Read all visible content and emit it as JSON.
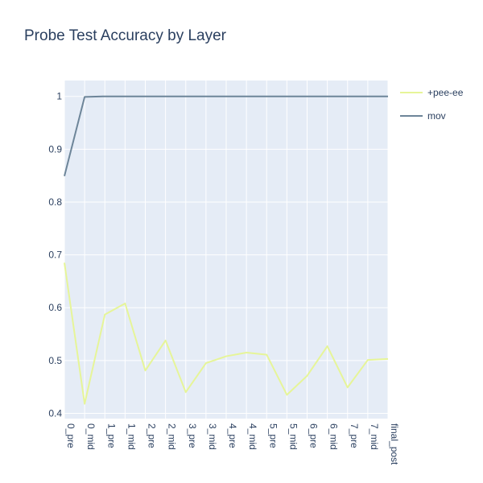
{
  "chart_data": {
    "type": "line",
    "title": "Probe Test Accuracy by Layer",
    "xlabel": "",
    "ylabel": "",
    "categories": [
      "0_pre",
      "0_mid",
      "1_pre",
      "1_mid",
      "2_pre",
      "2_mid",
      "3_pre",
      "3_mid",
      "4_pre",
      "4_mid",
      "5_pre",
      "5_mid",
      "6_pre",
      "6_mid",
      "7_pre",
      "7_mid",
      "final_post"
    ],
    "series": [
      {
        "name": "+pee-ee",
        "color": "#e6f598",
        "values": [
          0.685,
          0.418,
          0.587,
          0.608,
          0.481,
          0.538,
          0.44,
          0.495,
          0.508,
          0.515,
          0.511,
          0.435,
          0.471,
          0.527,
          0.449,
          0.501,
          0.503
        ]
      },
      {
        "name": "mov",
        "color": "#6d8599",
        "values": [
          0.849,
          0.999,
          1.0,
          1.0,
          1.0,
          1.0,
          1.0,
          1.0,
          1.0,
          1.0,
          1.0,
          1.0,
          1.0,
          1.0,
          1.0,
          1.0,
          1.0
        ]
      }
    ],
    "ylim": [
      0.39,
      1.03
    ],
    "yticks": [
      0.4,
      0.5,
      0.6,
      0.7,
      0.8,
      0.9,
      1
    ],
    "grid": true,
    "legend_position": "top-right",
    "plot_background": "#e5ecf6",
    "gridline_color": "#ffffff",
    "text_color": "#2a3f5f"
  }
}
